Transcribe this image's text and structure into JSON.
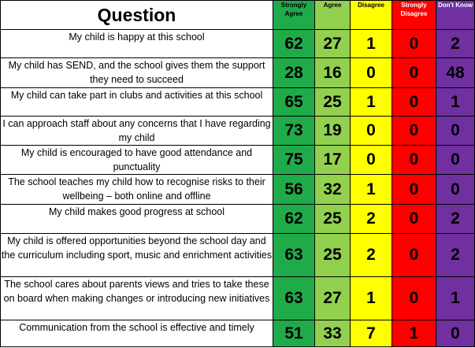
{
  "header": {
    "question_label": "Question",
    "columns": [
      "Strongly Agree",
      "Agree",
      "Disagree",
      "Strongly Disagree",
      "Don't Know"
    ]
  },
  "colors": {
    "strongly_agree": "#1fab4a",
    "agree": "#92d050",
    "disagree": "#ffff00",
    "strongly_disagree": "#ff0000",
    "dont_know": "#7030a0"
  },
  "rows": [
    {
      "question": "My child is happy at this school",
      "values": [
        "62",
        "27",
        "1",
        "0",
        "2"
      ]
    },
    {
      "question": "My child has SEND, and the school gives them the support they need to succeed",
      "values": [
        "28",
        "16",
        "0",
        "0",
        "48"
      ]
    },
    {
      "question": "My child can take part in clubs and activities at this school",
      "values": [
        "65",
        "25",
        "1",
        "0",
        "1"
      ]
    },
    {
      "question": "I can approach staff about any concerns that I have regarding my child",
      "values": [
        "73",
        "19",
        "0",
        "0",
        "0"
      ]
    },
    {
      "question": "My child is encouraged to have good attendance and punctuality",
      "values": [
        "75",
        "17",
        "0",
        "0",
        "0"
      ]
    },
    {
      "question": "The school teaches my child how to recognise risks to their wellbeing – both online and offline",
      "values": [
        "56",
        "32",
        "1",
        "0",
        "0"
      ]
    },
    {
      "question": "My child makes good progress at school",
      "values": [
        "62",
        "25",
        "2",
        "0",
        "2"
      ]
    },
    {
      "question": "My child is offered opportunities beyond the school day and the curriculum including sport, music and enrichment activities",
      "values": [
        "63",
        "25",
        "2",
        "0",
        "2"
      ]
    },
    {
      "question": "The school cares about parents views and tries to take these on board when making changes or introducing new initiatives",
      "values": [
        "63",
        "27",
        "1",
        "0",
        "1"
      ]
    },
    {
      "question": "Communication from the school is effective and timely",
      "values": [
        "51",
        "33",
        "7",
        "1",
        "0"
      ]
    }
  ]
}
